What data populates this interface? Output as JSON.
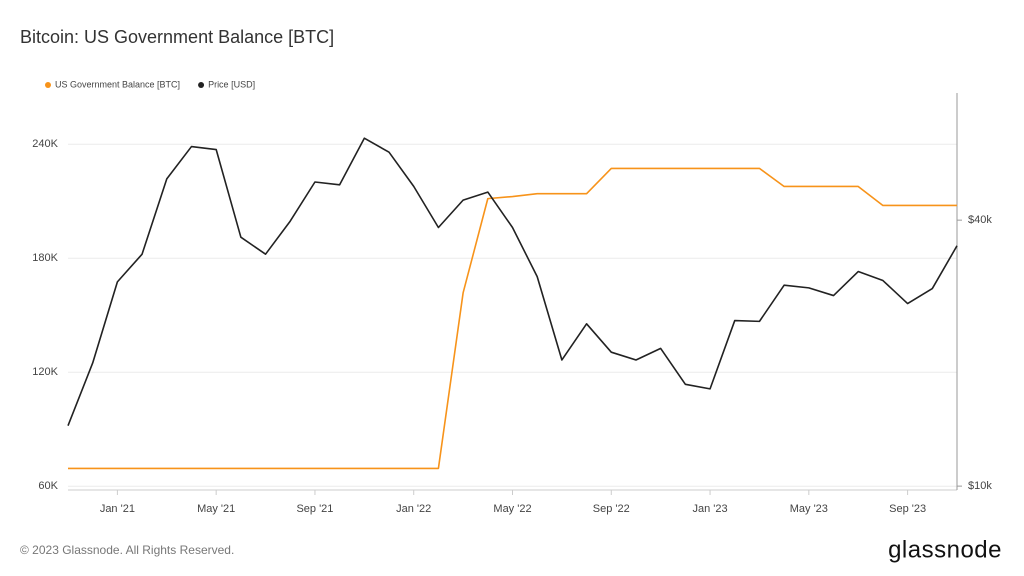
{
  "chart_data": {
    "type": "line",
    "title": "Bitcoin: US Government Balance [BTC]",
    "x": [
      "2020-11",
      "2020-12",
      "2021-01",
      "2021-02",
      "2021-03",
      "2021-04",
      "2021-05",
      "2021-06",
      "2021-07",
      "2021-08",
      "2021-09",
      "2021-10",
      "2021-11",
      "2021-12",
      "2022-01",
      "2022-02",
      "2022-03",
      "2022-04",
      "2022-05",
      "2022-06",
      "2022-07",
      "2022-08",
      "2022-09",
      "2022-10",
      "2022-11",
      "2022-12",
      "2023-01",
      "2023-02",
      "2023-03",
      "2023-04",
      "2023-05",
      "2023-06",
      "2023-07",
      "2023-08",
      "2023-09",
      "2023-10",
      "2023-11"
    ],
    "series": [
      {
        "name": "US Government Balance [BTC]",
        "color": "#f7931a",
        "values": [
          69370,
          69370,
          69370,
          69370,
          69370,
          69370,
          69370,
          69370,
          69370,
          69370,
          69370,
          69370,
          69370,
          69370,
          69370,
          69370,
          161800,
          211400,
          212500,
          214000,
          214000,
          214000,
          227300,
          227300,
          227300,
          227300,
          227300,
          227300,
          227300,
          217800,
          217800,
          217800,
          217800,
          207800,
          207800,
          207800,
          207800
        ]
      },
      {
        "name": "Price [USD]",
        "color": "#222222",
        "axis": "y2",
        "values": [
          13700,
          19000,
          29000,
          33500,
          49600,
          58700,
          57800,
          36600,
          33500,
          39800,
          48800,
          48100,
          61300,
          57000,
          47700,
          38500,
          44400,
          46300,
          38500,
          29800,
          19300,
          23300,
          20100,
          19300,
          20500,
          17000,
          16600,
          23700,
          23600,
          28500,
          28100,
          27000,
          30600,
          29200,
          25900,
          28000,
          35000
        ]
      }
    ],
    "xlim": [
      "2020-11",
      "2023-11"
    ],
    "xticks": [
      {
        "value": "2021-01",
        "label": "Jan '21"
      },
      {
        "value": "2021-05",
        "label": "May '21"
      },
      {
        "value": "2021-09",
        "label": "Sep '21"
      },
      {
        "value": "2022-01",
        "label": "Jan '22"
      },
      {
        "value": "2022-05",
        "label": "May '22"
      },
      {
        "value": "2022-09",
        "label": "Sep '22"
      },
      {
        "value": "2023-01",
        "label": "Jan '23"
      },
      {
        "value": "2023-05",
        "label": "May '23"
      },
      {
        "value": "2023-09",
        "label": "Sep '23"
      }
    ],
    "ylim": [
      58000,
      267000
    ],
    "yticks": [
      {
        "value": 60000,
        "label": "60K"
      },
      {
        "value": 120000,
        "label": "120K"
      },
      {
        "value": 180000,
        "label": "180K"
      },
      {
        "value": 240000,
        "label": "240K"
      }
    ],
    "y2lim": [
      9800,
      77600
    ],
    "y2scale": "log",
    "y2ticks": [
      {
        "value": 10000,
        "label": "$10k"
      },
      {
        "value": 40000,
        "label": "$40k"
      }
    ],
    "grid": true,
    "legend": "top-left"
  },
  "footer": {
    "copyright": "© 2023 Glassnode. All Rights Reserved.",
    "logo": "glassnode"
  }
}
